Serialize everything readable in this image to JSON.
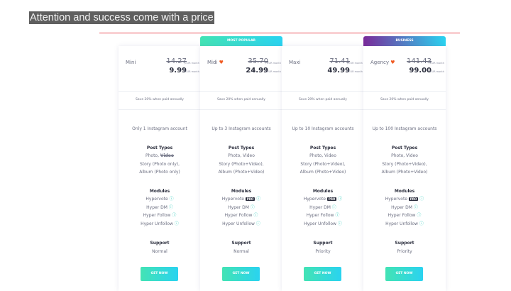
{
  "header": {
    "title": "Attention and success come with a price"
  },
  "colors": {
    "accent_red": "#e9505a",
    "button_gradient": [
      "#43e3b4",
      "#2ad3f0"
    ],
    "business_gradient": [
      "#7a2a9a",
      "#2ad3f0"
    ]
  },
  "badges": {
    "midi": "MOST POPULAR",
    "agency": "BUSINESS"
  },
  "plans": [
    {
      "name": "Mini",
      "heart": false,
      "old_price": "14.27",
      "new_price": "9.99",
      "unit": "/ EUR month",
      "save": "Save 20% when paid annually",
      "accounts": "Only 1 Instagram account",
      "post_types_title": "Post Types",
      "post_types": [
        "Photo, ",
        "Video",
        "Story (Photo only),",
        "Album (Photo only)"
      ],
      "modules_title": "Modules",
      "modules": [
        "Hypervote",
        "Hyper DM",
        "Hyper Follow",
        "Hyper Unfollow"
      ],
      "pro": false,
      "support_title": "Support",
      "support": "Normal",
      "button": "GET NOW"
    },
    {
      "name": "Midi",
      "heart": true,
      "old_price": "35.70",
      "new_price": "24.99",
      "unit": "/ EUR month",
      "save": "Save 20% when paid annually",
      "accounts": "Up to 3 Instagram accounts",
      "post_types_title": "Post Types",
      "post_types": [
        "Photo, Video",
        "",
        "Story (Photo+Video),",
        "Album (Photo+Video)"
      ],
      "modules_title": "Modules",
      "modules": [
        "Hypervote",
        "Hyper DM",
        "Hyper Follow",
        "Hyper Unfollow"
      ],
      "pro": true,
      "support_title": "Support",
      "support": "Normal",
      "button": "GET NOW"
    },
    {
      "name": "Maxi",
      "heart": false,
      "old_price": "71.41",
      "new_price": "49.99",
      "unit": "/ EUR month",
      "save": "Save 20% when paid annually",
      "accounts": "Up to 10 Instagram accounts",
      "post_types_title": "Post Types",
      "post_types": [
        "Photo, Video",
        "",
        "Story (Photo+Video),",
        "Album (Photo+Video)"
      ],
      "modules_title": "Modules",
      "modules": [
        "Hypervote",
        "Hyper DM",
        "Hyper Follow",
        "Hyper Unfollow"
      ],
      "pro": true,
      "support_title": "Support",
      "support": "Priority",
      "button": "GET NOW"
    },
    {
      "name": "Agency",
      "heart": true,
      "old_price": "141.43",
      "new_price": "99.00",
      "unit": "/ EUR month",
      "save": "Save 20% when paid annually",
      "accounts": "Up to 100 Instagram accounts",
      "post_types_title": "Post Types",
      "post_types": [
        "Photo, Video",
        "",
        "Story (Photo+Video),",
        "Album (Photo+Video)"
      ],
      "modules_title": "Modules",
      "modules": [
        "Hypervote",
        "Hyper DM",
        "Hyper Follow",
        "Hyper Unfollow"
      ],
      "pro": true,
      "support_title": "Support",
      "support": "Priority",
      "button": "GET NOW"
    }
  ],
  "pro_label": "PRO"
}
